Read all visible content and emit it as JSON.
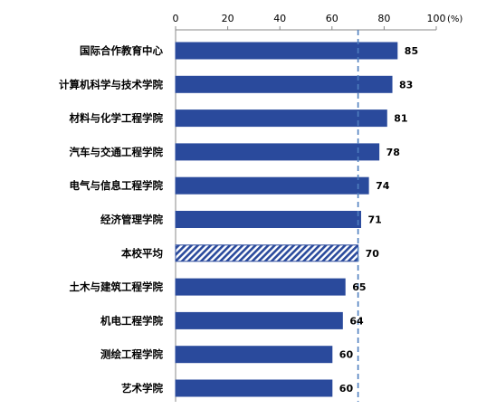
{
  "chart_data": {
    "type": "bar",
    "orientation": "horizontal",
    "categories": [
      "国际合作教育中心",
      "计算机科学与技术学院",
      "材料与化学工程学院",
      "汽车与交通工程学院",
      "电气与信息工程学院",
      "经济管理学院",
      "本校平均",
      "土木与建筑工程学院",
      "机电工程学院",
      "测绘工程学院",
      "艺术学院"
    ],
    "values": [
      85,
      83,
      81,
      78,
      74,
      71,
      70,
      65,
      64,
      60,
      60
    ],
    "highlight_category": "本校平均",
    "xlim": [
      0,
      100
    ],
    "xticks": [
      0,
      20,
      40,
      60,
      80,
      100
    ],
    "unit": "(%)",
    "reference_line": 70,
    "axis_position": "top",
    "grid": false,
    "colors": {
      "bar": "#2a4a9c",
      "hatch_bg": "#ffffff",
      "reference_line": "#4f7fbf"
    }
  }
}
